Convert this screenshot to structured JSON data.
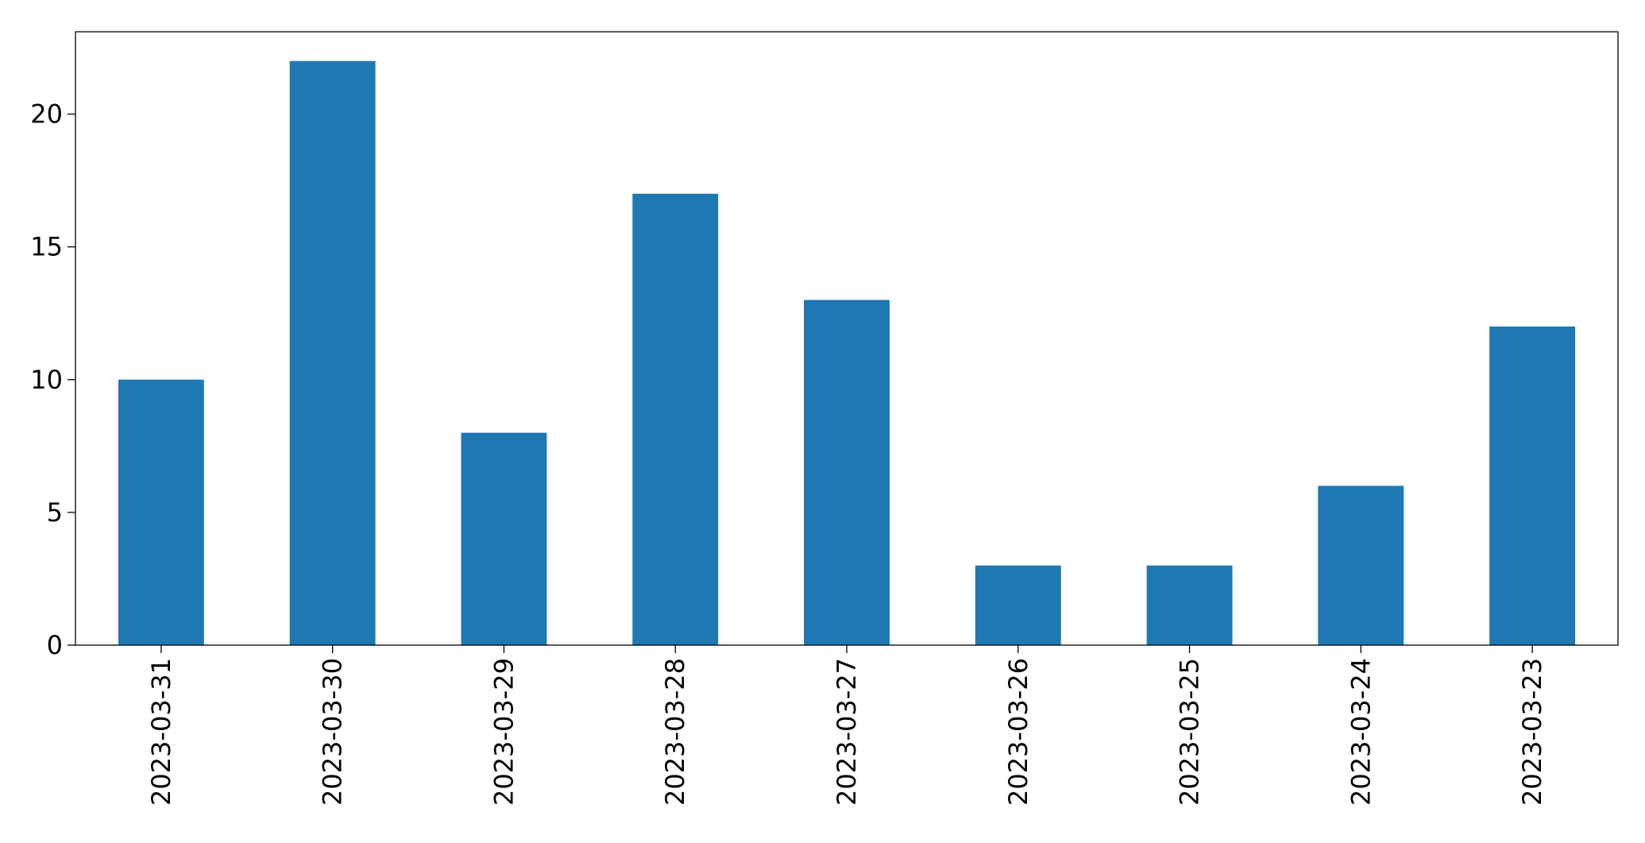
{
  "chart_data": {
    "type": "bar",
    "categories": [
      "2023-03-31",
      "2023-03-30",
      "2023-03-29",
      "2023-03-28",
      "2023-03-27",
      "2023-03-26",
      "2023-03-25",
      "2023-03-24",
      "2023-03-23"
    ],
    "values": [
      10,
      22,
      8,
      17,
      13,
      3,
      3,
      6,
      12
    ],
    "title": "",
    "xlabel": "",
    "ylabel": "",
    "ylim": [
      0,
      23.1
    ],
    "yticks": [
      0,
      5,
      10,
      15,
      20
    ],
    "grid": false,
    "bar_color": "#1f77b4"
  }
}
